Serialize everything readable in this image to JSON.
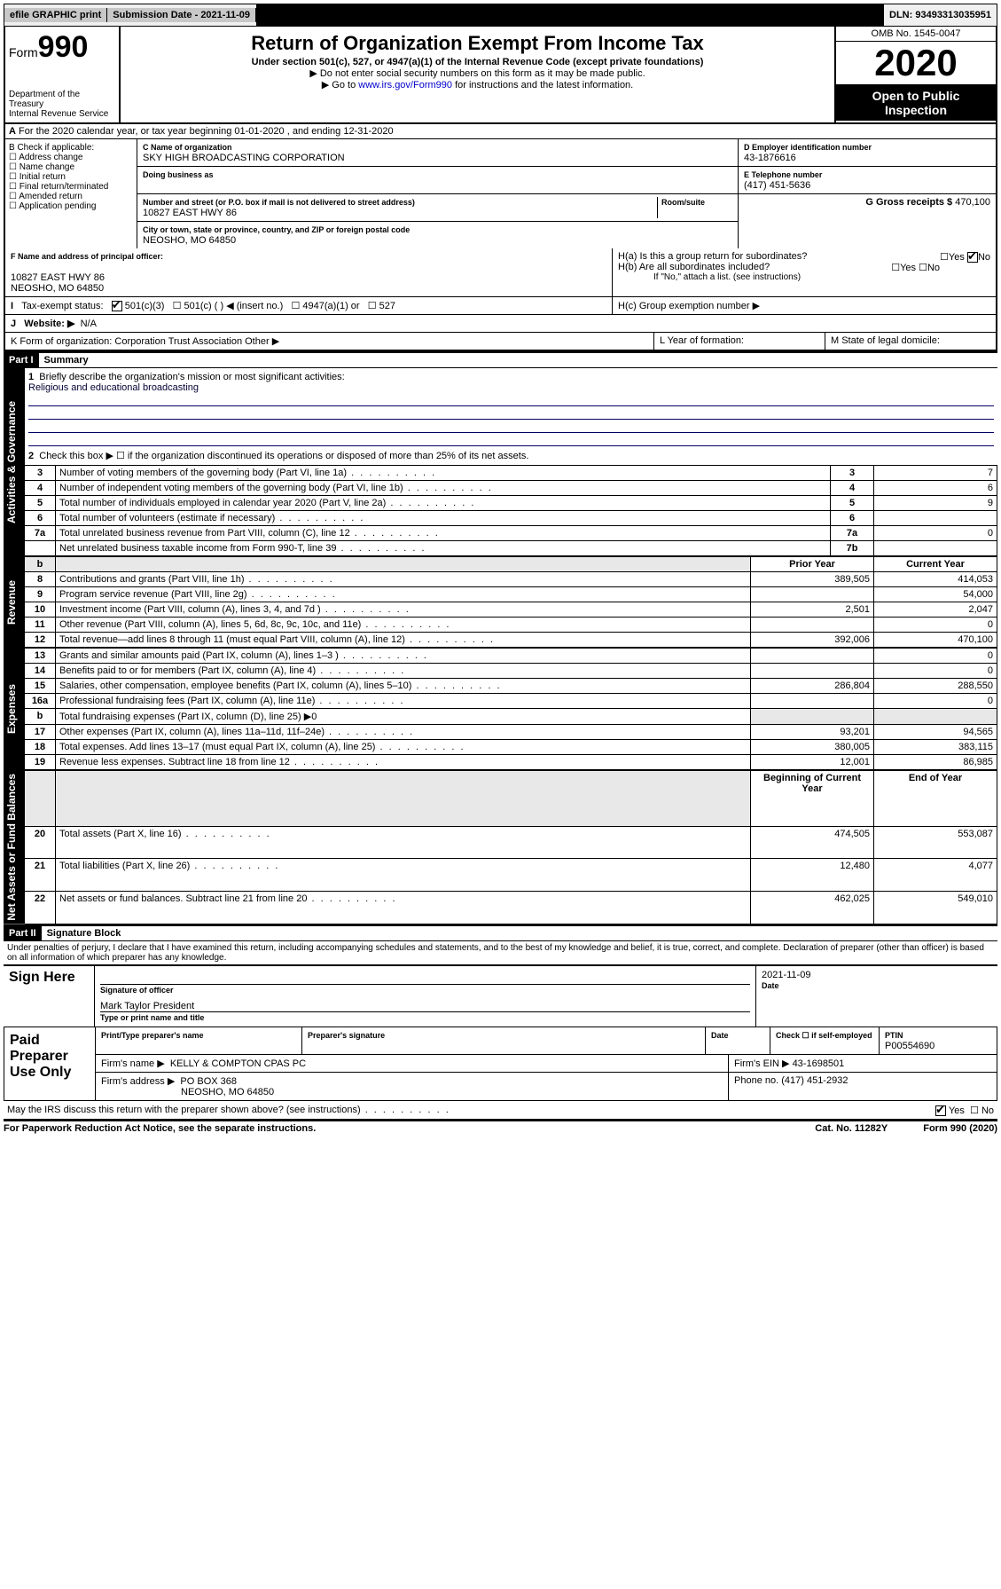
{
  "topbar": {
    "efile": "efile GRAPHIC print",
    "submission_label": "Submission Date - 2021-11-09",
    "dln": "DLN: 93493313035951"
  },
  "header": {
    "form_prefix": "Form",
    "form_no": "990",
    "dept": "Department of the Treasury",
    "irs": "Internal Revenue Service",
    "title": "Return of Organization Exempt From Income Tax",
    "sub1": "Under section 501(c), 527, or 4947(a)(1) of the Internal Revenue Code (except private foundations)",
    "sub2": "▶ Do not enter social security numbers on this form as it may be made public.",
    "sub3_pre": "▶ Go to ",
    "sub3_link": "www.irs.gov/Form990",
    "sub3_post": " for instructions and the latest information.",
    "omb": "OMB No. 1545-0047",
    "year": "2020",
    "open": "Open to Public Inspection"
  },
  "lineA": "For the 2020 calendar year, or tax year beginning 01-01-2020    , and ending 12-31-2020",
  "boxB": {
    "label": "B Check if applicable:",
    "items": [
      "Address change",
      "Name change",
      "Initial return",
      "Final return/terminated",
      "Amended return",
      "Application pending"
    ]
  },
  "boxC": {
    "name_lbl": "C Name of organization",
    "name": "SKY HIGH BROADCASTING CORPORATION",
    "dba_lbl": "Doing business as",
    "addr_lbl": "Number and street (or P.O. box if mail is not delivered to street address)",
    "room_lbl": "Room/suite",
    "addr": "10827 EAST HWY 86",
    "city_lbl": "City or town, state or province, country, and ZIP or foreign postal code",
    "city": "NEOSHO, MO  64850"
  },
  "boxD": {
    "lbl": "D Employer identification number",
    "val": "43-1876616"
  },
  "boxE": {
    "lbl": "E Telephone number",
    "val": "(417) 451-5636"
  },
  "boxG": {
    "lbl": "G Gross receipts $",
    "val": "470,100"
  },
  "boxF": {
    "lbl": "F  Name and address of principal officer:",
    "line1": "10827 EAST HWY 86",
    "line2": "NEOSHO, MO  64850"
  },
  "boxH": {
    "a": "H(a)  Is this a group return for subordinates?",
    "b": "H(b)  Are all subordinates included?",
    "note": "If \"No,\" attach a list. (see instructions)",
    "c": "H(c)  Group exemption number ▶"
  },
  "boxI": {
    "lbl": "Tax-exempt status:",
    "o1": "501(c)(3)",
    "o2": "501(c) (  ) ◀ (insert no.)",
    "o3": "4947(a)(1) or",
    "o4": "527"
  },
  "boxJ": {
    "lbl": "Website: ▶",
    "val": "N/A"
  },
  "boxK": "K Form of organization:    Corporation    Trust    Association    Other ▶",
  "boxL": "L Year of formation:",
  "boxM": "M State of legal domicile:",
  "part1": {
    "hdr": "Part I",
    "title": "Summary"
  },
  "tabs": {
    "gov": "Activities & Governance",
    "rev": "Revenue",
    "exp": "Expenses",
    "net": "Net Assets or Fund Balances"
  },
  "gov": {
    "l1": "Briefly describe the organization's mission or most significant activities:",
    "mission": "Religious and educational broadcasting",
    "l2": "Check this box ▶ ☐  if the organization discontinued its operations or disposed of more than 25% of its net assets.",
    "rows": [
      {
        "n": "3",
        "d": "Number of voting members of the governing body (Part VI, line 1a)",
        "c": "3",
        "v": "7"
      },
      {
        "n": "4",
        "d": "Number of independent voting members of the governing body (Part VI, line 1b)",
        "c": "4",
        "v": "6"
      },
      {
        "n": "5",
        "d": "Total number of individuals employed in calendar year 2020 (Part V, line 2a)",
        "c": "5",
        "v": "9"
      },
      {
        "n": "6",
        "d": "Total number of volunteers (estimate if necessary)",
        "c": "6",
        "v": ""
      },
      {
        "n": "7a",
        "d": "Total unrelated business revenue from Part VIII, column (C), line 12",
        "c": "7a",
        "v": "0"
      },
      {
        "n": "",
        "d": "Net unrelated business taxable income from Form 990-T, line 39",
        "c": "7b",
        "v": ""
      }
    ]
  },
  "finhdr": {
    "prior": "Prior Year",
    "current": "Current Year"
  },
  "rev": [
    {
      "n": "8",
      "d": "Contributions and grants (Part VIII, line 1h)",
      "p": "389,505",
      "c": "414,053"
    },
    {
      "n": "9",
      "d": "Program service revenue (Part VIII, line 2g)",
      "p": "",
      "c": "54,000"
    },
    {
      "n": "10",
      "d": "Investment income (Part VIII, column (A), lines 3, 4, and 7d )",
      "p": "2,501",
      "c": "2,047"
    },
    {
      "n": "11",
      "d": "Other revenue (Part VIII, column (A), lines 5, 6d, 8c, 9c, 10c, and 11e)",
      "p": "",
      "c": "0"
    },
    {
      "n": "12",
      "d": "Total revenue—add lines 8 through 11 (must equal Part VIII, column (A), line 12)",
      "p": "392,006",
      "c": "470,100"
    }
  ],
  "exp": [
    {
      "n": "13",
      "d": "Grants and similar amounts paid (Part IX, column (A), lines 1–3 )",
      "p": "",
      "c": "0"
    },
    {
      "n": "14",
      "d": "Benefits paid to or for members (Part IX, column (A), line 4)",
      "p": "",
      "c": "0"
    },
    {
      "n": "15",
      "d": "Salaries, other compensation, employee benefits (Part IX, column (A), lines 5–10)",
      "p": "286,804",
      "c": "288,550"
    },
    {
      "n": "16a",
      "d": "Professional fundraising fees (Part IX, column (A), line 11e)",
      "p": "",
      "c": "0"
    },
    {
      "n": "b",
      "d": "Total fundraising expenses (Part IX, column (D), line 25) ▶0",
      "p": null,
      "c": null
    },
    {
      "n": "17",
      "d": "Other expenses (Part IX, column (A), lines 11a–11d, 11f–24e)",
      "p": "93,201",
      "c": "94,565"
    },
    {
      "n": "18",
      "d": "Total expenses. Add lines 13–17 (must equal Part IX, column (A), line 25)",
      "p": "380,005",
      "c": "383,115"
    },
    {
      "n": "19",
      "d": "Revenue less expenses. Subtract line 18 from line 12",
      "p": "12,001",
      "c": "86,985"
    }
  ],
  "nethdr": {
    "begin": "Beginning of Current Year",
    "end": "End of Year"
  },
  "net": [
    {
      "n": "20",
      "d": "Total assets (Part X, line 16)",
      "p": "474,505",
      "c": "553,087"
    },
    {
      "n": "21",
      "d": "Total liabilities (Part X, line 26)",
      "p": "12,480",
      "c": "4,077"
    },
    {
      "n": "22",
      "d": "Net assets or fund balances. Subtract line 21 from line 20",
      "p": "462,025",
      "c": "549,010"
    }
  ],
  "part2": {
    "hdr": "Part II",
    "title": "Signature Block"
  },
  "perjury": "Under penalties of perjury, I declare that I have examined this return, including accompanying schedules and statements, and to the best of my knowledge and belief, it is true, correct, and complete. Declaration of preparer (other than officer) is based on all information of which preparer has any knowledge.",
  "sign": {
    "here": "Sign Here",
    "sig_lbl": "Signature of officer",
    "date": "2021-11-09",
    "date_lbl": "Date",
    "name": "Mark Taylor President",
    "name_lbl": "Type or print name and title"
  },
  "paid": {
    "here": "Paid Preparer Use Only",
    "pname_lbl": "Print/Type preparer's name",
    "psig_lbl": "Preparer's signature",
    "pdate_lbl": "Date",
    "self_lbl": "Check ☐ if self-employed",
    "ptin_lbl": "PTIN",
    "ptin": "P00554690",
    "firm_lbl": "Firm's name    ▶",
    "firm": "KELLY & COMPTON CPAS PC",
    "ein_lbl": "Firm's EIN ▶",
    "ein": "43-1698501",
    "addr_lbl": "Firm's address ▶",
    "addr1": "PO BOX 368",
    "addr2": "NEOSHO, MO  64850",
    "phone_lbl": "Phone no.",
    "phone": "(417) 451-2932"
  },
  "discuss": "May the IRS discuss this return with the preparer shown above? (see instructions)",
  "footer": {
    "pra": "For Paperwork Reduction Act Notice, see the separate instructions.",
    "cat": "Cat. No. 11282Y",
    "form": "Form 990 (2020)"
  },
  "yes": "Yes",
  "no": "No"
}
